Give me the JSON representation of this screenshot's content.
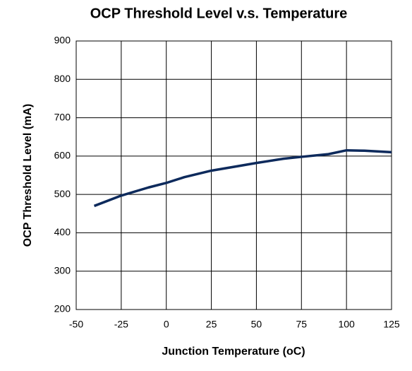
{
  "chart_data": {
    "type": "line",
    "title": "OCP Threshold Level v.s. Temperature",
    "xlabel": "Junction Temperature (oC)",
    "ylabel": "OCP Threshold Level  (mA)",
    "x": [
      -40,
      -25,
      -10,
      0,
      10,
      25,
      40,
      50,
      65,
      75,
      90,
      100,
      110,
      125
    ],
    "series": [
      {
        "name": "OCP Threshold Level",
        "color": "#0d2a5c",
        "values": [
          470,
          497,
          518,
          530,
          545,
          562,
          574,
          582,
          593,
          598,
          605,
          615,
          614,
          610
        ]
      }
    ],
    "xlim": [
      -50,
      125
    ],
    "xticks": [
      -50,
      -25,
      0,
      25,
      50,
      75,
      100,
      125
    ],
    "ylim": [
      200,
      900
    ],
    "yticks": [
      200,
      300,
      400,
      500,
      600,
      700,
      800,
      900
    ],
    "grid": true
  }
}
